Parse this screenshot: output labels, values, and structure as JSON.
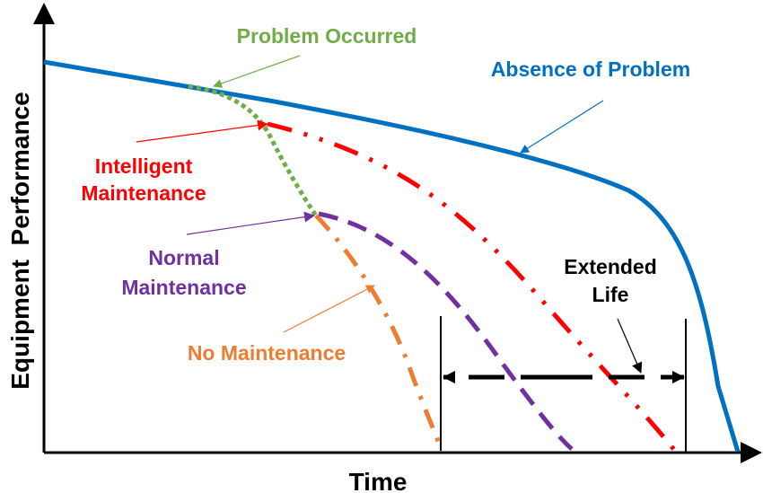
{
  "axes": {
    "x_label": "Time",
    "y_label": "Equipment  Performance"
  },
  "labels": {
    "problem_occurred": "Problem Occurred",
    "absence_of_problem": "Absence of Problem",
    "intelligent_line1": "Intelligent",
    "intelligent_line2": "Maintenance",
    "normal_line1": "Normal",
    "normal_line2": "Maintenance",
    "no_maintenance": "No Maintenance",
    "extended_line1": "Extended",
    "extended_line2": "Life"
  },
  "colors": {
    "absence": "#0070C0",
    "problem": "#70AD47",
    "intelligent": "#FF0000",
    "normal": "#7030A0",
    "none": "#ED7D31",
    "axis": "#000000"
  }
}
